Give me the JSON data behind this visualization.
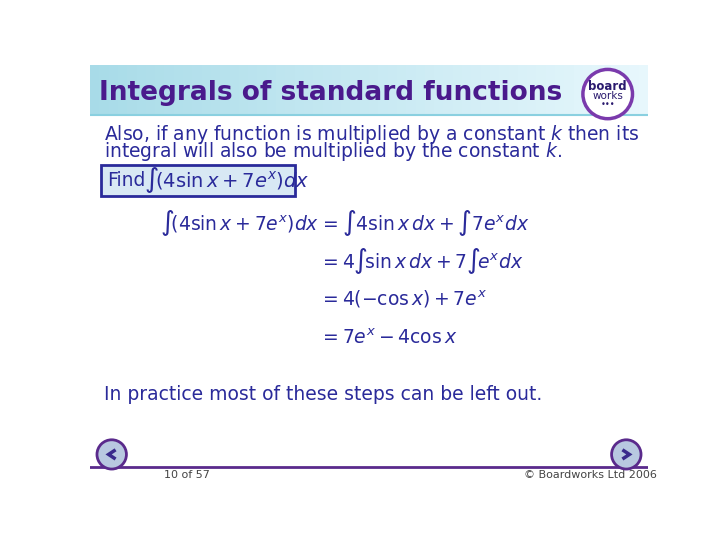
{
  "title": "Integrals of standard functions",
  "title_color": "#4a1a8c",
  "bg_color": "#ffffff",
  "text_color": "#2a2a9a",
  "header_gradient_left": "#a8dce8",
  "header_gradient_right": "#e8f8fc",
  "footer_left": "10 of 57",
  "footer_right": "© Boardworks Ltd 2006",
  "box_border_color": "#2a2a9a",
  "box_fill_color": "#d8e8f4",
  "footer_line_color": "#5a2a8c",
  "arrow_fill": "#b8c8e0",
  "arrow_border": "#5a2a8c"
}
